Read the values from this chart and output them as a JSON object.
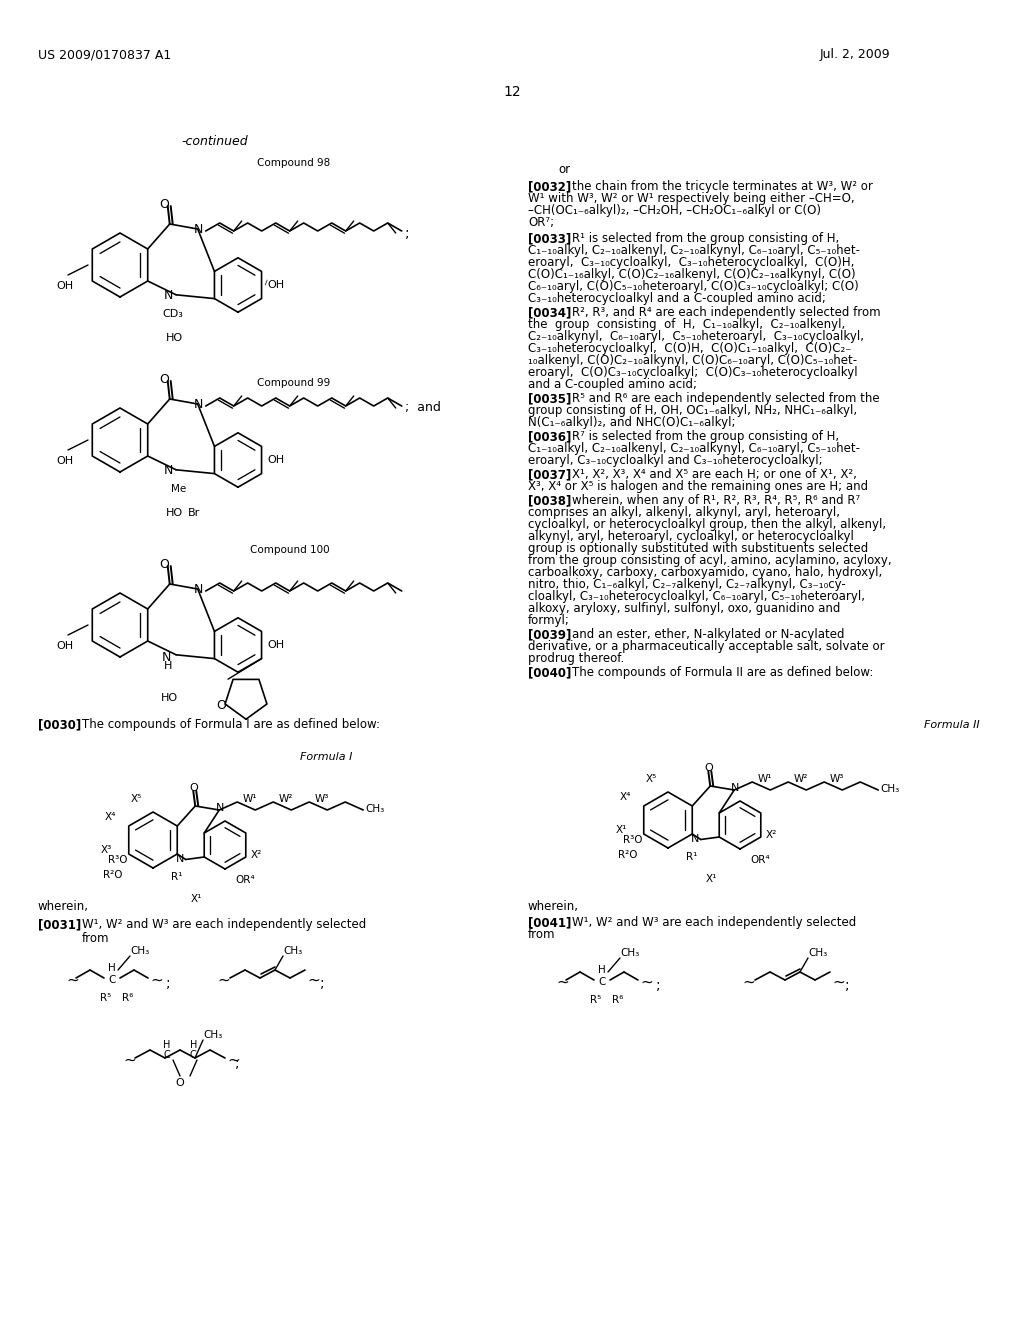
{
  "background_color": "#ffffff",
  "page_number": "12",
  "header_left": "US 2009/0170837 A1",
  "header_right": "Jul. 2, 2009"
}
